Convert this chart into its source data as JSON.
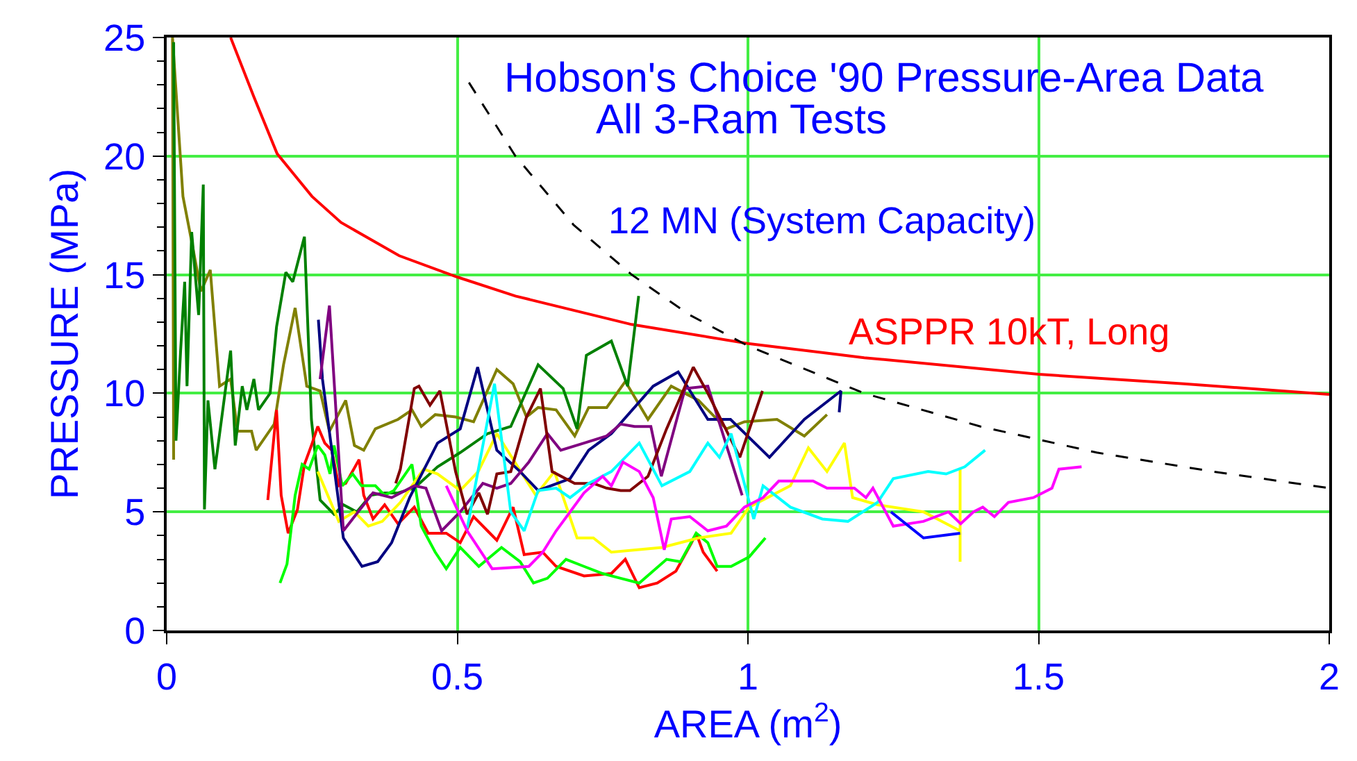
{
  "chart_data": {
    "type": "line",
    "title": "Hobson's Choice '90 Pressure-Area Data",
    "subtitle": "All 3-Ram Tests",
    "xlabel": "AREA (m$^{2}$)",
    "ylabel": "PRESSURE (MPa)",
    "xlim": [
      0,
      2
    ],
    "xticks": [
      0,
      0.5,
      1,
      1.5,
      2
    ],
    "ylim": [
      0,
      25
    ],
    "yticks": [
      0,
      5,
      10,
      15,
      20,
      25
    ],
    "grid": true,
    "legend": false,
    "marker": "none",
    "series": [
      {
        "name": "ASPPR 10kT, Long",
        "color": "#ff0000",
        "x": [
          0.11,
          0.15,
          0.19,
          0.25,
          0.3,
          0.4,
          0.5,
          0.6,
          0.8,
          1.0,
          1.2,
          1.5,
          1.75,
          2.0
        ],
        "values": [
          25,
          22.5,
          20.1,
          18.3,
          17.2,
          15.8,
          14.9,
          14.1,
          12.9,
          12.1,
          11.5,
          10.8,
          10.4,
          9.95
        ]
      },
      {
        "name": "12 MN (System Capacity)",
        "color": "#000000",
        "line_style": "dashed",
        "x": [
          0.52,
          0.6,
          0.7,
          0.8,
          0.9,
          1.0,
          1.2,
          1.4,
          1.6,
          1.8,
          2.0
        ],
        "values": [
          23.1,
          20,
          17.1,
          15,
          13.3,
          12,
          10,
          8.6,
          7.5,
          6.7,
          6.0
        ]
      },
      {
        "color": "#808000",
        "x": [
          0.012,
          0.01,
          0.028,
          0.043,
          0.059,
          0.075,
          0.091,
          0.11,
          0.122,
          0.146,
          0.154,
          0.185,
          0.201,
          0.221,
          0.241,
          0.264,
          0.28,
          0.308,
          0.323,
          0.339,
          0.359,
          0.398,
          0.422,
          0.438,
          0.462,
          0.497,
          0.528,
          0.568,
          0.596,
          0.619,
          0.639,
          0.67,
          0.702,
          0.726,
          0.757,
          0.789,
          0.828,
          0.868,
          0.915,
          0.963,
          0.994,
          1.05,
          1.097,
          1.136
        ],
        "values": [
          7.2,
          25,
          18.3,
          16.4,
          14.3,
          15.2,
          10.3,
          10.6,
          8.4,
          8.4,
          7.6,
          8.7,
          11.2,
          13.6,
          10.3,
          10.1,
          8.4,
          9.7,
          7.8,
          7.6,
          8.5,
          8.9,
          9.3,
          8.6,
          9.1,
          9.0,
          8.8,
          11.0,
          10.4,
          9.0,
          9.4,
          9.3,
          8.2,
          9.4,
          9.4,
          10.5,
          8.9,
          10.3,
          9.7,
          8.5,
          8.8,
          8.9,
          8.2,
          9.1
        ]
      },
      {
        "color": "#008000",
        "x": [
          0.012,
          0.016,
          0.024,
          0.031,
          0.035,
          0.043,
          0.055,
          0.063,
          0.065,
          0.071,
          0.083,
          0.11,
          0.118,
          0.13,
          0.138,
          0.15,
          0.158,
          0.178,
          0.189,
          0.205,
          0.217,
          0.237,
          0.249,
          0.264,
          0.288,
          0.304,
          0.327,
          0.351,
          0.375,
          0.398,
          0.426,
          0.466,
          0.505,
          0.552,
          0.592,
          0.639,
          0.682,
          0.706,
          0.722,
          0.765,
          0.793,
          0.812
        ],
        "values": [
          24.8,
          8.0,
          11.8,
          14.7,
          10.3,
          16.8,
          13.3,
          18.8,
          5.1,
          9.7,
          6.8,
          11.8,
          7.8,
          10.3,
          9.3,
          10.6,
          9.3,
          10.0,
          12.8,
          15.1,
          14.7,
          16.6,
          8.9,
          5.5,
          4.9,
          5.3,
          5.0,
          5.7,
          5.8,
          5.8,
          6.0,
          6.9,
          7.5,
          8.3,
          8.6,
          11.2,
          10.2,
          8.5,
          11.6,
          12.2,
          10.3,
          14.1
        ]
      },
      {
        "color": "#ff0000",
        "x": [
          0.174,
          0.189,
          0.197,
          0.209,
          0.225,
          0.237,
          0.249,
          0.26,
          0.272,
          0.284,
          0.296,
          0.308,
          0.331,
          0.339,
          0.355,
          0.375,
          0.398,
          0.426,
          0.45,
          0.481,
          0.505,
          0.528,
          0.552,
          0.568,
          0.596,
          0.615,
          0.647,
          0.67,
          0.718,
          0.765,
          0.789,
          0.813,
          0.844,
          0.876,
          0.903,
          0.911,
          0.923,
          0.947
        ],
        "values": [
          5.5,
          9.3,
          5.7,
          4.1,
          5.1,
          7.0,
          7.8,
          8.6,
          7.9,
          7.6,
          6.1,
          6.2,
          7.2,
          5.7,
          4.7,
          5.3,
          4.5,
          5.2,
          4.1,
          4.1,
          3.7,
          4.8,
          4.2,
          3.8,
          5.2,
          3.2,
          3.3,
          2.7,
          2.3,
          2.4,
          3.0,
          1.8,
          2.0,
          2.5,
          3.7,
          4.1,
          3.3,
          2.5
        ]
      },
      {
        "color": "#00ff00",
        "x": [
          0.195,
          0.207,
          0.221,
          0.233,
          0.245,
          0.26,
          0.272,
          0.281,
          0.288,
          0.302,
          0.32,
          0.335,
          0.359,
          0.375,
          0.391,
          0.422,
          0.438,
          0.462,
          0.481,
          0.505,
          0.537,
          0.576,
          0.608,
          0.631,
          0.655,
          0.687,
          0.718,
          0.75,
          0.781,
          0.813,
          0.86,
          0.884,
          0.911,
          0.931,
          0.947,
          0.971,
          1.002,
          1.03
        ],
        "values": [
          2.0,
          2.8,
          5.7,
          7.0,
          6.8,
          7.8,
          7.4,
          6.6,
          7.8,
          6.1,
          6.6,
          6.1,
          6.1,
          5.7,
          5.9,
          7.0,
          4.4,
          3.3,
          2.6,
          3.5,
          2.7,
          3.5,
          2.9,
          2.0,
          2.2,
          3.0,
          2.7,
          2.4,
          2.2,
          2.0,
          3.0,
          2.9,
          4.1,
          3.7,
          2.7,
          2.7,
          3.1,
          3.9
        ]
      },
      {
        "color": "#ffff00",
        "x": [
          0.26,
          0.296,
          0.323,
          0.347,
          0.371,
          0.402,
          0.442,
          0.466,
          0.505,
          0.536,
          0.568,
          0.599,
          0.635,
          0.667,
          0.706,
          0.734,
          0.765,
          0.852,
          0.915,
          0.971,
          1.002,
          1.073,
          1.104,
          1.136,
          1.166,
          1.18,
          1.223,
          1.302,
          1.365,
          1.365,
          1.365
        ],
        "values": [
          6.7,
          4.6,
          5.0,
          4.4,
          4.6,
          5.4,
          6.8,
          6.6,
          5.9,
          6.7,
          8.3,
          7.1,
          5.7,
          6.7,
          3.9,
          3.9,
          3.3,
          3.5,
          3.9,
          4.1,
          5.2,
          6.1,
          7.7,
          6.7,
          7.9,
          5.6,
          5.3,
          5.0,
          4.2,
          6.8,
          2.9
        ]
      },
      {
        "color": "#000080",
        "x": [
          0.261,
          0.268,
          0.304,
          0.336,
          0.363,
          0.387,
          0.418,
          0.466,
          0.505,
          0.535,
          0.568,
          0.608,
          0.639,
          0.694,
          0.726,
          0.765,
          0.837,
          0.88,
          0.931,
          0.97,
          1.037,
          1.097,
          1.16,
          1.157
        ],
        "values": [
          13.1,
          10.6,
          3.9,
          2.7,
          2.9,
          3.7,
          5.6,
          7.9,
          8.5,
          11.1,
          7.6,
          6.7,
          5.9,
          6.4,
          7.6,
          8.3,
          10.3,
          10.9,
          8.9,
          8.9,
          7.3,
          8.9,
          10.1,
          9.2
        ]
      },
      {
        "color": "#800080",
        "x": [
          0.264,
          0.28,
          0.304,
          0.323,
          0.355,
          0.387,
          0.426,
          0.446,
          0.473,
          0.505,
          0.544,
          0.568,
          0.592,
          0.623,
          0.655,
          0.678,
          0.718,
          0.757,
          0.781,
          0.805,
          0.833,
          0.851,
          0.892,
          0.931,
          0.99
        ],
        "values": [
          10.6,
          13.7,
          4.2,
          4.8,
          5.8,
          5.6,
          6.1,
          6.0,
          4.2,
          5.0,
          6.2,
          6.0,
          6.2,
          7.1,
          8.3,
          7.6,
          7.9,
          8.2,
          8.7,
          8.6,
          8.6,
          6.5,
          10.2,
          10.3,
          5.7
        ]
      },
      {
        "color": "#800000",
        "x": [
          0.394,
          0.402,
          0.426,
          0.434,
          0.453,
          0.47,
          0.497,
          0.517,
          0.537,
          0.552,
          0.568,
          0.592,
          0.619,
          0.643,
          0.663,
          0.702,
          0.734,
          0.757,
          0.781,
          0.797,
          0.828,
          0.86,
          0.906,
          0.931,
          0.986,
          1.025
        ],
        "values": [
          6.2,
          6.8,
          10.2,
          10.3,
          9.5,
          10.1,
          6.7,
          4.9,
          5.8,
          4.9,
          6.6,
          6.7,
          9.0,
          10.2,
          6.7,
          6.2,
          6.2,
          6.0,
          5.9,
          5.9,
          6.5,
          8.5,
          11.1,
          10.0,
          7.3,
          10.1
        ]
      },
      {
        "color": "#00ffff",
        "x": [
          0.517,
          0.564,
          0.592,
          0.615,
          0.639,
          0.67,
          0.694,
          0.726,
          0.765,
          0.813,
          0.852,
          0.9,
          0.931,
          0.951,
          0.971,
          1.01,
          1.026,
          1.073,
          1.128,
          1.172,
          1.223,
          1.25,
          1.31,
          1.341,
          1.373,
          1.408
        ],
        "values": [
          4.3,
          10.4,
          5.0,
          4.2,
          5.9,
          6.0,
          5.6,
          6.2,
          6.7,
          7.9,
          6.1,
          6.7,
          7.9,
          7.3,
          8.3,
          4.7,
          6.1,
          5.2,
          4.7,
          4.6,
          5.4,
          6.4,
          6.7,
          6.6,
          6.9,
          7.6
        ]
      },
      {
        "color": "#ff00ff",
        "x": [
          0.481,
          0.517,
          0.56,
          0.623,
          0.647,
          0.67,
          0.718,
          0.75,
          0.765,
          0.785,
          0.813,
          0.837,
          0.856,
          0.868,
          0.9,
          0.931,
          0.963,
          0.994,
          1.026,
          1.053,
          1.112,
          1.136,
          1.183,
          1.203,
          1.215,
          1.25,
          1.302,
          1.345,
          1.366,
          1.388,
          1.404,
          1.424,
          1.448,
          1.491,
          1.523,
          1.535,
          1.574
        ],
        "values": [
          6.1,
          4.2,
          2.6,
          2.7,
          3.3,
          4.2,
          5.8,
          6.5,
          6.1,
          7.1,
          6.7,
          5.6,
          3.4,
          4.7,
          4.8,
          4.2,
          4.4,
          5.2,
          5.6,
          6.3,
          6.3,
          6.0,
          6.0,
          5.6,
          6.0,
          4.4,
          4.6,
          5.0,
          4.5,
          5.0,
          5.2,
          4.8,
          5.4,
          5.6,
          6.0,
          6.8,
          6.9
        ]
      },
      {
        "color": "#0000ff",
        "x": [
          1.246,
          1.302,
          1.365
        ],
        "values": [
          5.0,
          3.9,
          4.1
        ]
      }
    ]
  }
}
